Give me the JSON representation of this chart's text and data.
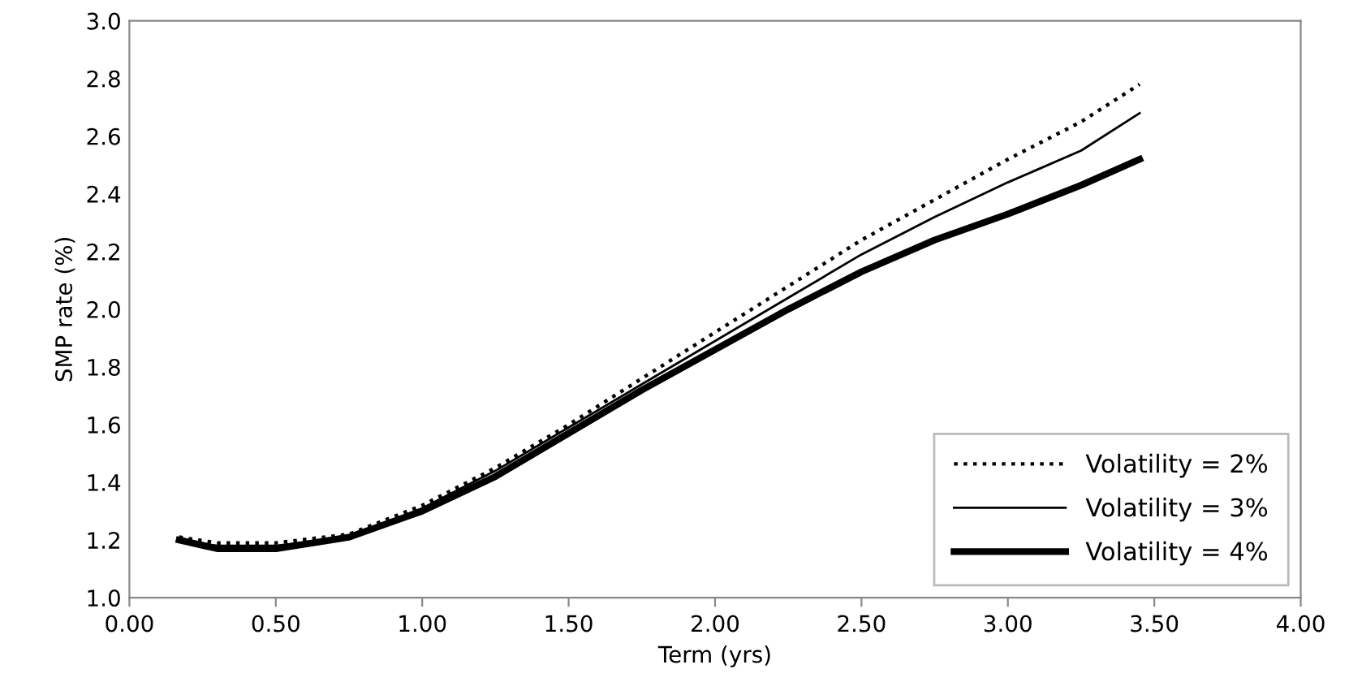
{
  "chart_data": {
    "type": "line",
    "xlabel": "Term (yrs)",
    "ylabel": "SMP rate (%)",
    "x": [
      0.17,
      0.3,
      0.5,
      0.75,
      1.0,
      1.25,
      1.5,
      1.75,
      2.0,
      2.25,
      2.5,
      2.75,
      3.0,
      3.25,
      3.45
    ],
    "series": [
      {
        "name": "Volatility = 2%",
        "color": "#000000",
        "line_style": "dotted",
        "values": [
          1.21,
          1.19,
          1.19,
          1.22,
          1.32,
          1.45,
          1.6,
          1.76,
          1.92,
          2.08,
          2.24,
          2.38,
          2.52,
          2.65,
          2.78
        ]
      },
      {
        "name": "Volatility = 3%",
        "color": "#000000",
        "line_style": "solid",
        "values": [
          1.2,
          1.18,
          1.18,
          1.21,
          1.31,
          1.44,
          1.59,
          1.74,
          1.89,
          2.04,
          2.19,
          2.32,
          2.44,
          2.55,
          2.68
        ]
      },
      {
        "name": "Volatility = 4%",
        "color": "#000000",
        "line_style": "solid",
        "values": [
          1.2,
          1.17,
          1.17,
          1.21,
          1.3,
          1.42,
          1.57,
          1.72,
          1.86,
          2.0,
          2.13,
          2.24,
          2.33,
          2.43,
          2.52
        ]
      }
    ],
    "xlim": [
      0,
      4
    ],
    "xticks": [
      {
        "value": 0,
        "label": "0.00"
      },
      {
        "value": 0.5,
        "label": "0.50"
      },
      {
        "value": 1,
        "label": "1.00"
      },
      {
        "value": 1.5,
        "label": "1.50"
      },
      {
        "value": 2,
        "label": "2.00"
      },
      {
        "value": 2.5,
        "label": "2.50"
      },
      {
        "value": 3,
        "label": "3.00"
      },
      {
        "value": 3.5,
        "label": "3.50"
      },
      {
        "value": 4,
        "label": "4.00"
      }
    ],
    "ylim": [
      1.0,
      3.0
    ],
    "yticks": [
      {
        "value": 1,
        "label": "1.0"
      },
      1.2,
      1.4,
      1.6,
      1.8,
      {
        "value": 2,
        "label": "2.0"
      },
      2.2,
      2.4,
      2.6,
      2.8,
      {
        "value": 3,
        "label": "3.0"
      }
    ],
    "legend": "bottom right",
    "marker": "none"
  }
}
